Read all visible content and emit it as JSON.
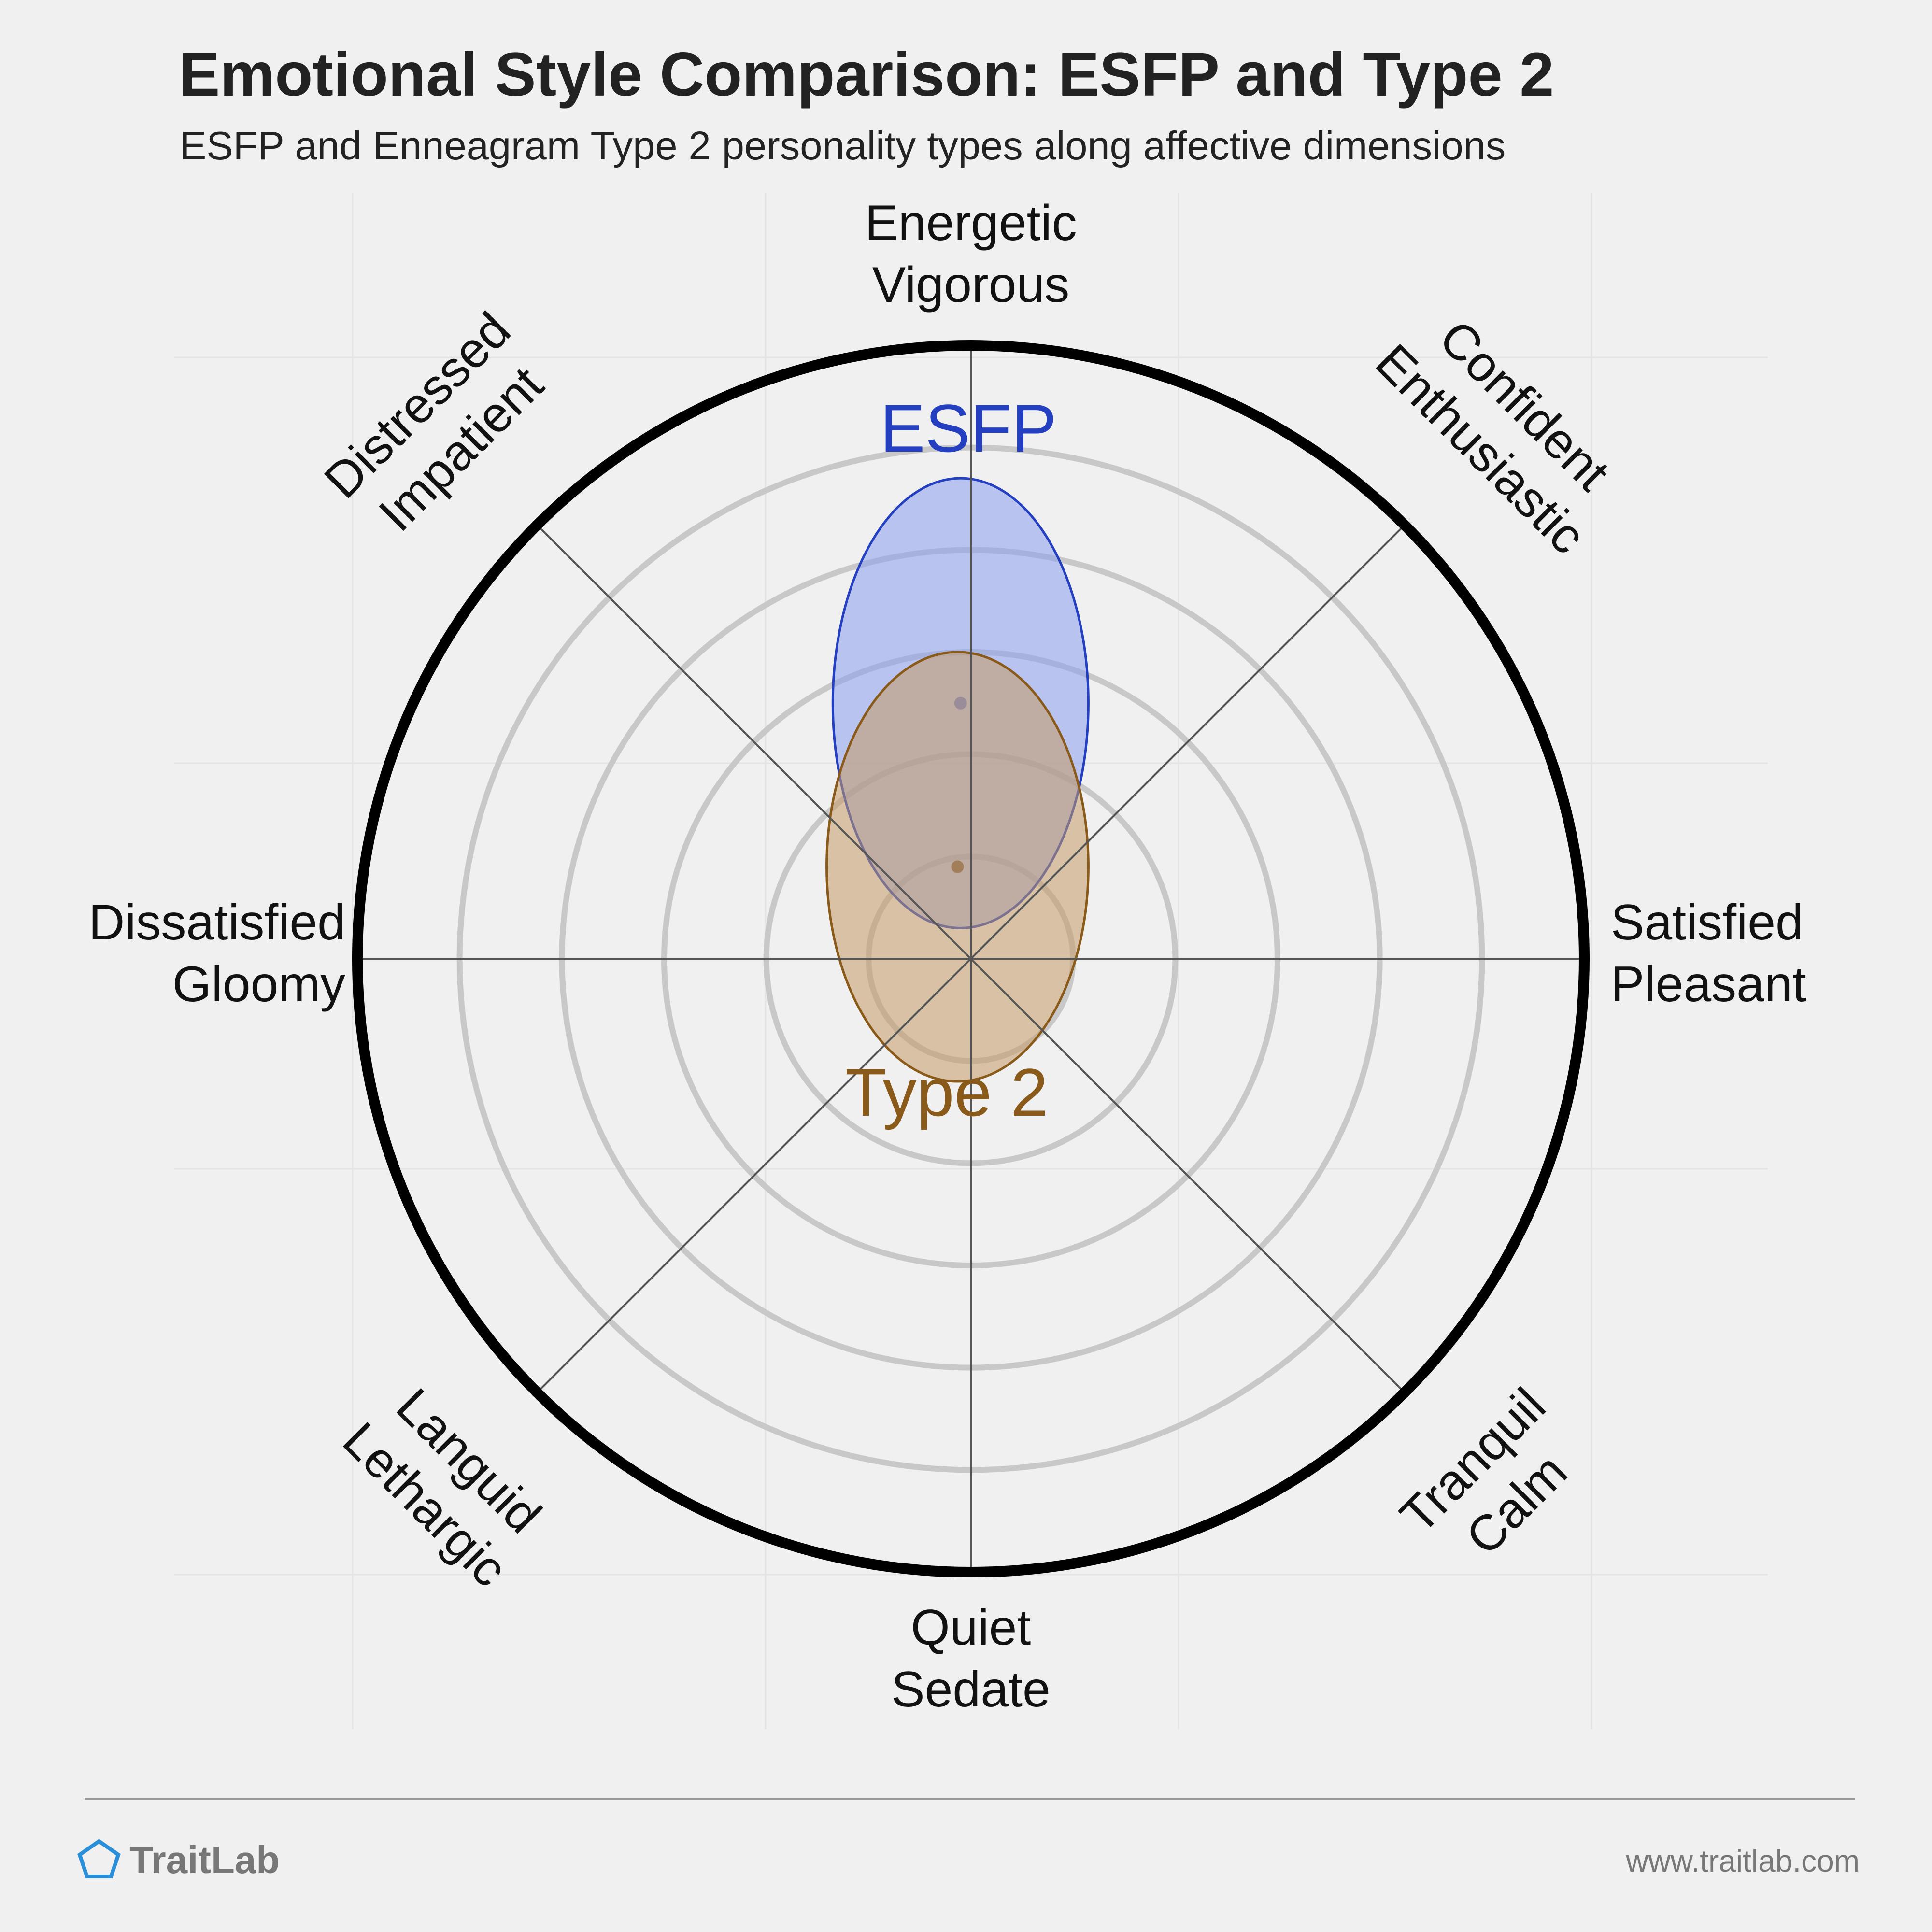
{
  "header": {
    "title": "Emotional Style Comparison: ESFP and Type 2",
    "subtitle": "ESFP and Enneagram Type 2 personality types along affective dimensions"
  },
  "footer": {
    "brand": "TraitLab",
    "brand_icon": "pentagon-icon",
    "url": "www.traitlab.com"
  },
  "colors": {
    "esfp": "#2440c0",
    "type2": "#8a5a1a",
    "ring": "#c8c8c8",
    "outer": "#000000"
  },
  "chart_data": {
    "type": "radial",
    "scale": [
      0,
      6
    ],
    "rings": [
      1,
      2,
      3,
      4,
      5,
      6
    ],
    "axes": [
      {
        "angle": 90,
        "lines": [
          "Energetic",
          "Vigorous"
        ]
      },
      {
        "angle": 45,
        "lines": [
          "Confident",
          "Enthusiastic"
        ]
      },
      {
        "angle": 0,
        "lines": [
          "Satisfied",
          "Pleasant"
        ]
      },
      {
        "angle": -45,
        "lines": [
          "Tranquil",
          "Calm"
        ]
      },
      {
        "angle": -90,
        "lines": [
          "Quiet",
          "Sedate"
        ]
      },
      {
        "angle": -135,
        "lines": [
          "Languid",
          "Lethargic"
        ]
      },
      {
        "angle": 180,
        "lines": [
          "Dissatisfied",
          "Gloomy"
        ]
      },
      {
        "angle": 135,
        "lines": [
          "Distressed",
          "Impatient"
        ]
      }
    ],
    "series": [
      {
        "name": "ESFP",
        "center": [
          -0.1,
          2.5
        ],
        "rx": 1.25,
        "ry": 2.2,
        "color": "#2440c0",
        "fill": "#8a9ef0"
      },
      {
        "name": "Type 2",
        "center": [
          -0.13,
          0.9
        ],
        "rx": 1.28,
        "ry": 2.1,
        "color": "#8a5a1a",
        "fill": "#c49a66"
      }
    ]
  }
}
